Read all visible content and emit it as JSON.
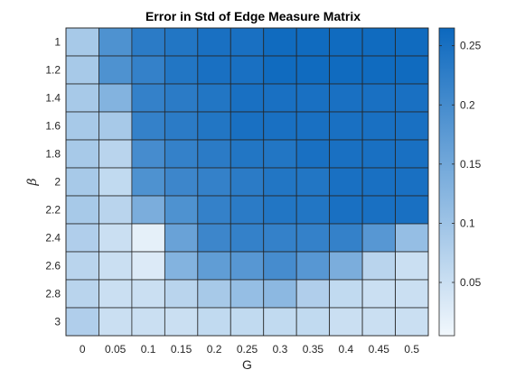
{
  "chart_data": {
    "type": "heatmap",
    "title": "Error in Std of Edge Measure Matrix",
    "xlabel": "G",
    "ylabel": "β",
    "x": [
      "0",
      "0.05",
      "0.1",
      "0.15",
      "0.2",
      "0.25",
      "0.3",
      "0.35",
      "0.4",
      "0.45",
      "0.5"
    ],
    "y": [
      "1",
      "1.2",
      "1.4",
      "1.6",
      "1.8",
      "2",
      "2.2",
      "2.4",
      "2.6",
      "2.8",
      "3"
    ],
    "values": [
      [
        0.09,
        0.19,
        0.23,
        0.24,
        0.25,
        0.25,
        0.26,
        0.26,
        0.26,
        0.26,
        0.26
      ],
      [
        0.09,
        0.19,
        0.22,
        0.24,
        0.25,
        0.25,
        0.26,
        0.26,
        0.26,
        0.26,
        0.26
      ],
      [
        0.09,
        0.13,
        0.22,
        0.23,
        0.24,
        0.25,
        0.25,
        0.25,
        0.25,
        0.25,
        0.25
      ],
      [
        0.09,
        0.09,
        0.22,
        0.23,
        0.24,
        0.25,
        0.25,
        0.25,
        0.25,
        0.25,
        0.25
      ],
      [
        0.09,
        0.07,
        0.2,
        0.22,
        0.23,
        0.24,
        0.24,
        0.25,
        0.25,
        0.25,
        0.25
      ],
      [
        0.09,
        0.06,
        0.19,
        0.21,
        0.22,
        0.23,
        0.24,
        0.24,
        0.25,
        0.25,
        0.25
      ],
      [
        0.09,
        0.07,
        0.14,
        0.19,
        0.22,
        0.23,
        0.24,
        0.24,
        0.25,
        0.25,
        0.25
      ],
      [
        0.08,
        0.05,
        0.02,
        0.16,
        0.21,
        0.22,
        0.22,
        0.22,
        0.22,
        0.18,
        0.11
      ],
      [
        0.07,
        0.05,
        0.03,
        0.13,
        0.17,
        0.18,
        0.2,
        0.18,
        0.14,
        0.07,
        0.05
      ],
      [
        0.07,
        0.05,
        0.05,
        0.07,
        0.09,
        0.11,
        0.12,
        0.08,
        0.06,
        0.05,
        0.05
      ],
      [
        0.08,
        0.05,
        0.05,
        0.05,
        0.06,
        0.06,
        0.06,
        0.06,
        0.05,
        0.05,
        0.05
      ]
    ],
    "colorbar": {
      "range": [
        0.005,
        0.265
      ],
      "ticks": [
        0.05,
        0.1,
        0.15,
        0.2,
        0.25
      ],
      "tick_labels": [
        "0.05",
        "0.1",
        "0.15",
        "0.2",
        "0.25"
      ]
    },
    "colormap": {
      "low": "#f2f8fd",
      "high": "#0c68be"
    },
    "grid": true
  }
}
